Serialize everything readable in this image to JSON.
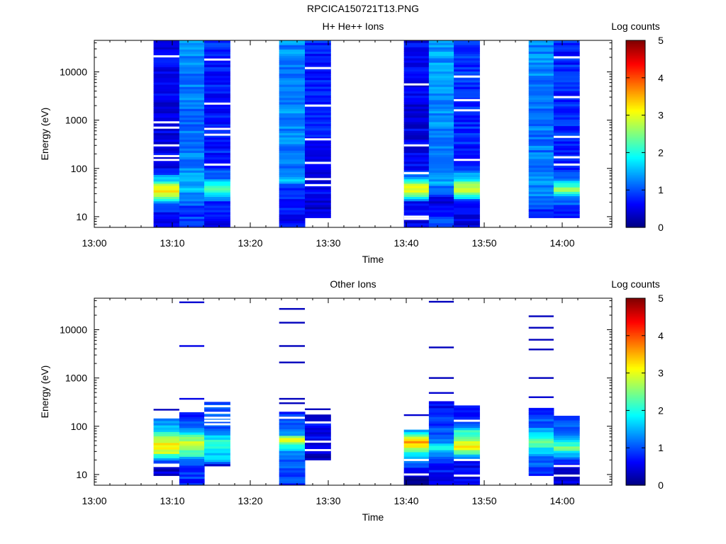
{
  "figure_title": "RPCICA150721T13.PNG",
  "chart_data": [
    {
      "type": "heatmap",
      "title": "H+ He++ Ions",
      "xlabel": "Time",
      "ylabel": "Energy (eV)",
      "y_scale": "log",
      "ylim": [
        6,
        45000
      ],
      "x_ticks": [
        "13:00",
        "13:10",
        "13:20",
        "13:30",
        "13:40",
        "13:50",
        "14:00"
      ],
      "y_ticks": [
        "10",
        "100",
        "1000",
        "10000"
      ],
      "colorbar": {
        "label": "Log counts",
        "range": [
          0,
          5
        ],
        "ticks": [
          "0",
          "1",
          "2",
          "3",
          "4",
          "5"
        ]
      },
      "columns": [
        {
          "start": "13:07.6",
          "end": "13:10.9",
          "emin": 6,
          "emax": 45000,
          "profile": [
            [
              6,
              0.6
            ],
            [
              12,
              0.7
            ],
            [
              20,
              1.2
            ],
            [
              25,
              2.6
            ],
            [
              35,
              3.3
            ],
            [
              45,
              2.9
            ],
            [
              60,
              1.6
            ],
            [
              100,
              0.5
            ],
            [
              1000,
              0.5
            ],
            [
              45000,
              0.6
            ]
          ],
          "gaps": [
            300,
            180,
            150,
            700,
            900,
            21000
          ]
        },
        {
          "start": "13:10.9",
          "end": "13:14.1",
          "emin": 6,
          "emax": 45000,
          "profile": [
            [
              6,
              0.9
            ],
            [
              15,
              0.9
            ],
            [
              25,
              1.2
            ],
            [
              40,
              1.6
            ],
            [
              100,
              1.3
            ],
            [
              1000,
              1.2
            ],
            [
              45000,
              1.3
            ]
          ],
          "gaps": []
        },
        {
          "start": "13:14.1",
          "end": "13:17.4",
          "emin": 6,
          "emax": 45000,
          "profile": [
            [
              6,
              0.4
            ],
            [
              20,
              0.8
            ],
            [
              30,
              1.8
            ],
            [
              40,
              2.3
            ],
            [
              60,
              1.3
            ],
            [
              100,
              0.8
            ],
            [
              1000,
              0.7
            ],
            [
              45000,
              0.8
            ]
          ],
          "gaps": [
            120,
            500,
            660,
            2200,
            18000
          ]
        },
        {
          "start": "13:23.7",
          "end": "13:27.0",
          "emin": 6,
          "emax": 45000,
          "profile": [
            [
              6,
              0.6
            ],
            [
              40,
              0.8
            ],
            [
              55,
              1.5
            ],
            [
              100,
              1.2
            ],
            [
              1000,
              1.3
            ],
            [
              45000,
              1.3
            ]
          ],
          "gaps": []
        },
        {
          "start": "13:27.0",
          "end": "13:30.3",
          "emin": 9.5,
          "emax": 45000,
          "profile": [
            [
              9.5,
              0.4
            ],
            [
              40,
              0.6
            ],
            [
              100,
              0.6
            ],
            [
              1000,
              0.8
            ],
            [
              45000,
              0.8
            ]
          ],
          "gaps": [
            45,
            60,
            130,
            400,
            2000,
            12000
          ]
        },
        {
          "start": "13:39.7",
          "end": "13:42.9",
          "emin": 6,
          "emax": 45000,
          "profile": [
            [
              6,
              0.5
            ],
            [
              20,
              0.6
            ],
            [
              28,
              2.4
            ],
            [
              35,
              3.1
            ],
            [
              45,
              3.1
            ],
            [
              60,
              1.7
            ],
            [
              100,
              0.6
            ],
            [
              1000,
              0.5
            ],
            [
              45000,
              0.6
            ]
          ],
          "gaps": [
            9,
            10,
            80,
            300,
            5500
          ]
        },
        {
          "start": "13:42.9",
          "end": "13:46.1",
          "emin": 6,
          "emax": 45000,
          "profile": [
            [
              6,
              1.1
            ],
            [
              12,
              0.7
            ],
            [
              25,
              0.3
            ],
            [
              30,
              1.0
            ],
            [
              60,
              1.5
            ],
            [
              100,
              1.3
            ],
            [
              1000,
              1.3
            ],
            [
              45000,
              1.4
            ]
          ],
          "gaps": []
        },
        {
          "start": "13:46.1",
          "end": "13:49.4",
          "emin": 6,
          "emax": 45000,
          "profile": [
            [
              6,
              0.5
            ],
            [
              20,
              0.6
            ],
            [
              30,
              2.6
            ],
            [
              45,
              3.0
            ],
            [
              60,
              1.8
            ],
            [
              80,
              1.3
            ],
            [
              100,
              0.8
            ],
            [
              1000,
              0.8
            ],
            [
              45000,
              0.9
            ]
          ],
          "gaps": [
            150,
            1600,
            2600,
            8000
          ]
        },
        {
          "start": "13:55.7",
          "end": "13:58.9",
          "emin": 9.5,
          "emax": 45000,
          "profile": [
            [
              9.5,
              0.6
            ],
            [
              20,
              1.1
            ],
            [
              30,
              1.3
            ],
            [
              60,
              1.3
            ],
            [
              100,
              1.2
            ],
            [
              1000,
              1.2
            ],
            [
              45000,
              1.3
            ]
          ],
          "gaps": []
        },
        {
          "start": "13:58.9",
          "end": "14:02.2",
          "emin": 9.5,
          "emax": 45000,
          "profile": [
            [
              9.5,
              0.5
            ],
            [
              25,
              1.3
            ],
            [
              35,
              2.5
            ],
            [
              45,
              2.3
            ],
            [
              60,
              1.3
            ],
            [
              100,
              0.8
            ],
            [
              1000,
              0.8
            ],
            [
              45000,
              0.8
            ]
          ],
          "gaps": [
            120,
            170,
            450,
            3000,
            20000
          ]
        }
      ]
    },
    {
      "type": "heatmap",
      "title": "Other Ions",
      "xlabel": "Time",
      "ylabel": "Energy (eV)",
      "y_scale": "log",
      "ylim": [
        6,
        45000
      ],
      "x_ticks": [
        "13:00",
        "13:10",
        "13:20",
        "13:30",
        "13:40",
        "13:50",
        "14:00"
      ],
      "y_ticks": [
        "10",
        "100",
        "1000",
        "10000"
      ],
      "colorbar": {
        "label": "Log counts",
        "range": [
          0,
          5
        ],
        "ticks": [
          "0",
          "1",
          "2",
          "3",
          "4",
          "5"
        ]
      },
      "columns": [
        {
          "start": "13:07.6",
          "end": "13:10.9",
          "emin": 9.5,
          "emax": 145,
          "profile": [
            [
              9.5,
              0.4
            ],
            [
              13,
              0.4
            ],
            [
              20,
              1.3
            ],
            [
              25,
              2.2
            ],
            [
              30,
              3.0
            ],
            [
              40,
              3.2
            ],
            [
              60,
              2.5
            ],
            [
              90,
              1.5
            ],
            [
              145,
              1.1
            ]
          ],
          "gaps": [
            15,
            16
          ],
          "lines": [
            [
              220,
              0.3
            ]
          ]
        },
        {
          "start": "13:10.9",
          "end": "13:14.1",
          "emin": 6,
          "emax": 195,
          "profile": [
            [
              6,
              0.8
            ],
            [
              20,
              1.0
            ],
            [
              25,
              2.0
            ],
            [
              35,
              2.5
            ],
            [
              50,
              2.8
            ],
            [
              70,
              2.0
            ],
            [
              100,
              1.0
            ],
            [
              195,
              0.8
            ]
          ],
          "gaps": [],
          "lines": [
            [
              370,
              0.5
            ],
            [
              4600,
              0.5
            ],
            [
              37000,
              0.4
            ]
          ]
        },
        {
          "start": "13:14.1",
          "end": "13:17.4",
          "emin": 15,
          "emax": 320,
          "profile": [
            [
              15,
              0.4
            ],
            [
              20,
              1.5
            ],
            [
              30,
              1.8
            ],
            [
              45,
              2.3
            ],
            [
              60,
              1.6
            ],
            [
              100,
              1.1
            ],
            [
              320,
              0.9
            ]
          ],
          "gaps": [
            110,
            130,
            150,
            190,
            260
          ],
          "lines": []
        },
        {
          "start": "13:23.7",
          "end": "13:27.0",
          "emin": 6,
          "emax": 200,
          "profile": [
            [
              6,
              0.9
            ],
            [
              25,
              1.1
            ],
            [
              35,
              1.7
            ],
            [
              45,
              2.5
            ],
            [
              55,
              3.2
            ],
            [
              70,
              1.2
            ],
            [
              200,
              0.8
            ]
          ],
          "gaps": [
            150
          ],
          "lines": [
            [
              300,
              0.3
            ],
            [
              370,
              0.3
            ],
            [
              2100,
              0.3
            ],
            [
              4600,
              0.3
            ],
            [
              14000,
              0.3
            ],
            [
              27000,
              0.3
            ]
          ]
        },
        {
          "start": "13:27.0",
          "end": "13:30.3",
          "emin": 20,
          "emax": 175,
          "profile": [
            [
              20,
              0.4
            ],
            [
              30,
              0.4
            ],
            [
              45,
              0.6
            ],
            [
              100,
              0.6
            ],
            [
              175,
              0.5
            ]
          ],
          "gaps": [
            32,
            48,
            120
          ],
          "lines": [
            [
              225,
              0.3
            ]
          ]
        },
        {
          "start": "13:39.7",
          "end": "13:42.9",
          "emin": 6,
          "emax": 85,
          "profile": [
            [
              6,
              0.2
            ],
            [
              9.5,
              0.3
            ],
            [
              25,
              1.5
            ],
            [
              35,
              2.8
            ],
            [
              50,
              3.6
            ],
            [
              85,
              1.0
            ]
          ],
          "gaps": [
            10,
            20
          ],
          "lines": [
            [
              170,
              0.4
            ]
          ]
        },
        {
          "start": "13:42.9",
          "end": "13:46.1",
          "emin": 6,
          "emax": 330,
          "profile": [
            [
              6,
              0.6
            ],
            [
              20,
              0.8
            ],
            [
              25,
              1.3
            ],
            [
              35,
              1.9
            ],
            [
              60,
              1.1
            ],
            [
              150,
              0.8
            ],
            [
              330,
              0.6
            ]
          ],
          "gaps": [],
          "lines": [
            [
              490,
              0.4
            ],
            [
              1000,
              0.3
            ],
            [
              4300,
              0.3
            ],
            [
              38000,
              0.3
            ]
          ]
        },
        {
          "start": "13:46.1",
          "end": "13:49.4",
          "emin": 6,
          "emax": 270,
          "profile": [
            [
              6,
              0.5
            ],
            [
              20,
              0.6
            ],
            [
              30,
              2.6
            ],
            [
              40,
              3.3
            ],
            [
              55,
              2.6
            ],
            [
              80,
              2.0
            ],
            [
              100,
              1.1
            ],
            [
              150,
              0.6
            ],
            [
              270,
              0.5
            ]
          ],
          "gaps": [
            9.5,
            20,
            130
          ],
          "lines": []
        },
        {
          "start": "13:55.7",
          "end": "13:58.9",
          "emin": 9.5,
          "emax": 240,
          "profile": [
            [
              9.5,
              0.8
            ],
            [
              25,
              1.3
            ],
            [
              35,
              1.9
            ],
            [
              45,
              2.4
            ],
            [
              60,
              2.1
            ],
            [
              100,
              1.1
            ],
            [
              240,
              0.9
            ]
          ],
          "gaps": [],
          "lines": [
            [
              400,
              0.4
            ],
            [
              1000,
              0.3
            ],
            [
              3900,
              0.3
            ],
            [
              6200,
              0.3
            ],
            [
              11000,
              0.3
            ],
            [
              19000,
              0.3
            ]
          ]
        },
        {
          "start": "13:58.9",
          "end": "14:02.2",
          "emin": 6,
          "emax": 165,
          "profile": [
            [
              6,
              0.4
            ],
            [
              15,
              0.4
            ],
            [
              25,
              1.5
            ],
            [
              35,
              2.4
            ],
            [
              45,
              2.1
            ],
            [
              70,
              1.3
            ],
            [
              165,
              0.6
            ]
          ],
          "gaps": [
            9.5,
            15
          ],
          "lines": []
        }
      ]
    }
  ]
}
